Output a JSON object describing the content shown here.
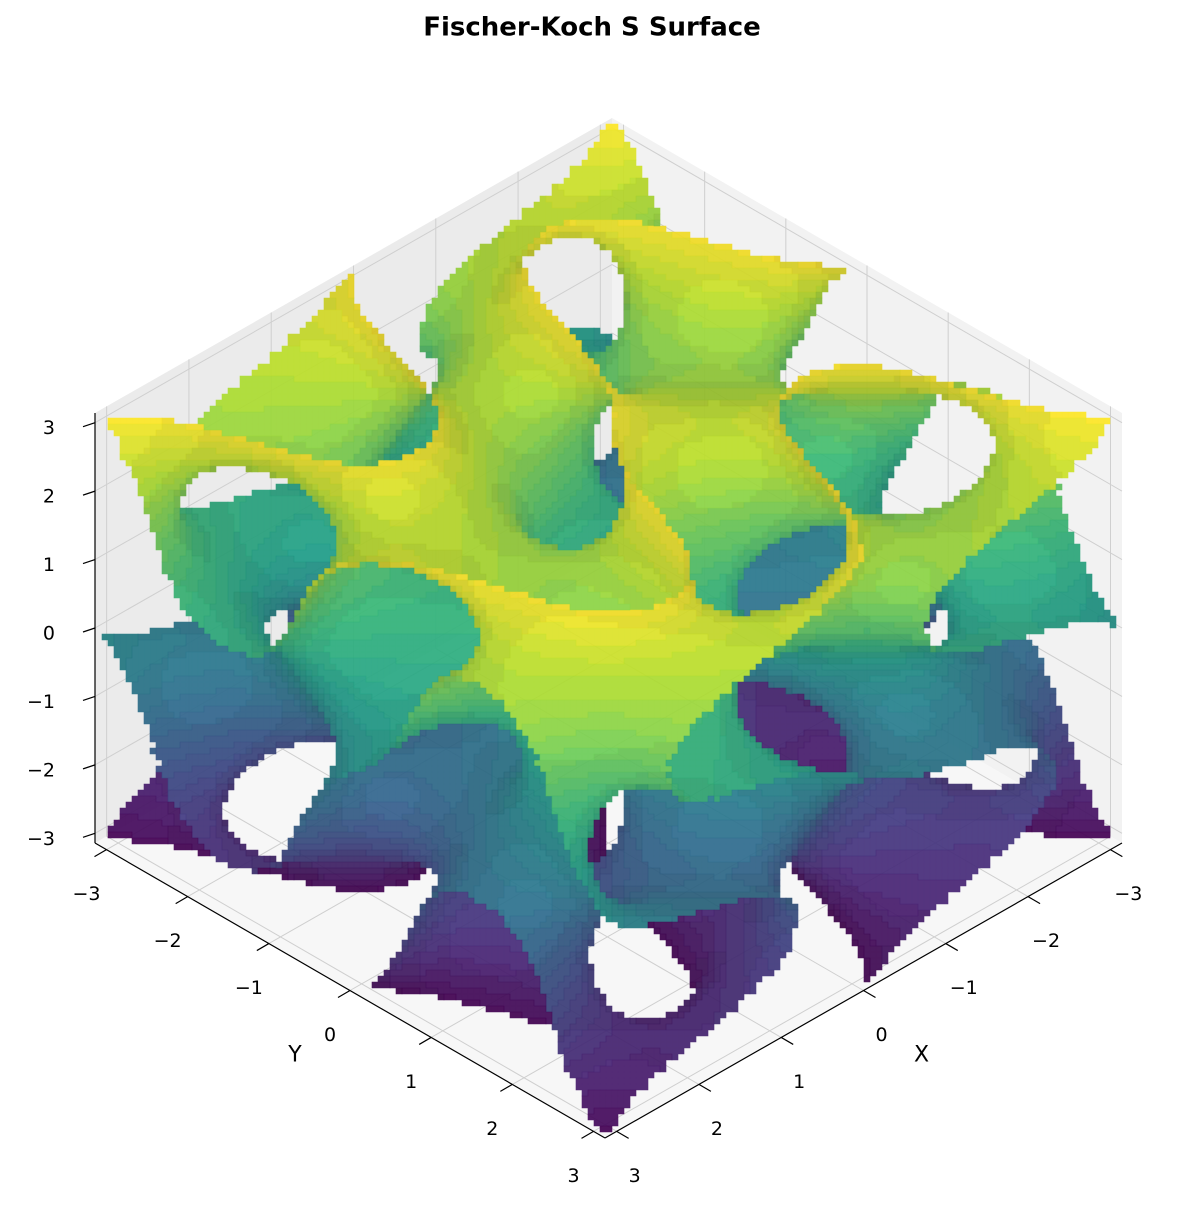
{
  "chart_data": {
    "type": "surface3d",
    "title": "Fischer-Koch S Surface",
    "xlabel": "X",
    "ylabel": "Y",
    "xlim": [
      -3.14159,
      3.14159
    ],
    "ylim": [
      -3.14159,
      3.14159
    ],
    "zlim": [
      -3.14159,
      3.14159
    ],
    "xticks": [
      {
        "value": -3,
        "label": "−3"
      },
      {
        "value": -2,
        "label": "−2"
      },
      {
        "value": -1,
        "label": "−1"
      },
      0,
      1,
      2,
      3
    ],
    "yticks": [
      {
        "value": -3,
        "label": "−3"
      },
      {
        "value": -2,
        "label": "−2"
      },
      {
        "value": -1,
        "label": "−1"
      },
      0,
      1,
      2,
      3
    ],
    "zticks": [
      {
        "value": -3,
        "label": "−3"
      },
      {
        "value": -2,
        "label": "−2"
      },
      {
        "value": -1,
        "label": "−1"
      },
      0,
      1,
      2,
      3
    ],
    "colormap": "viridis",
    "grid": true
  }
}
